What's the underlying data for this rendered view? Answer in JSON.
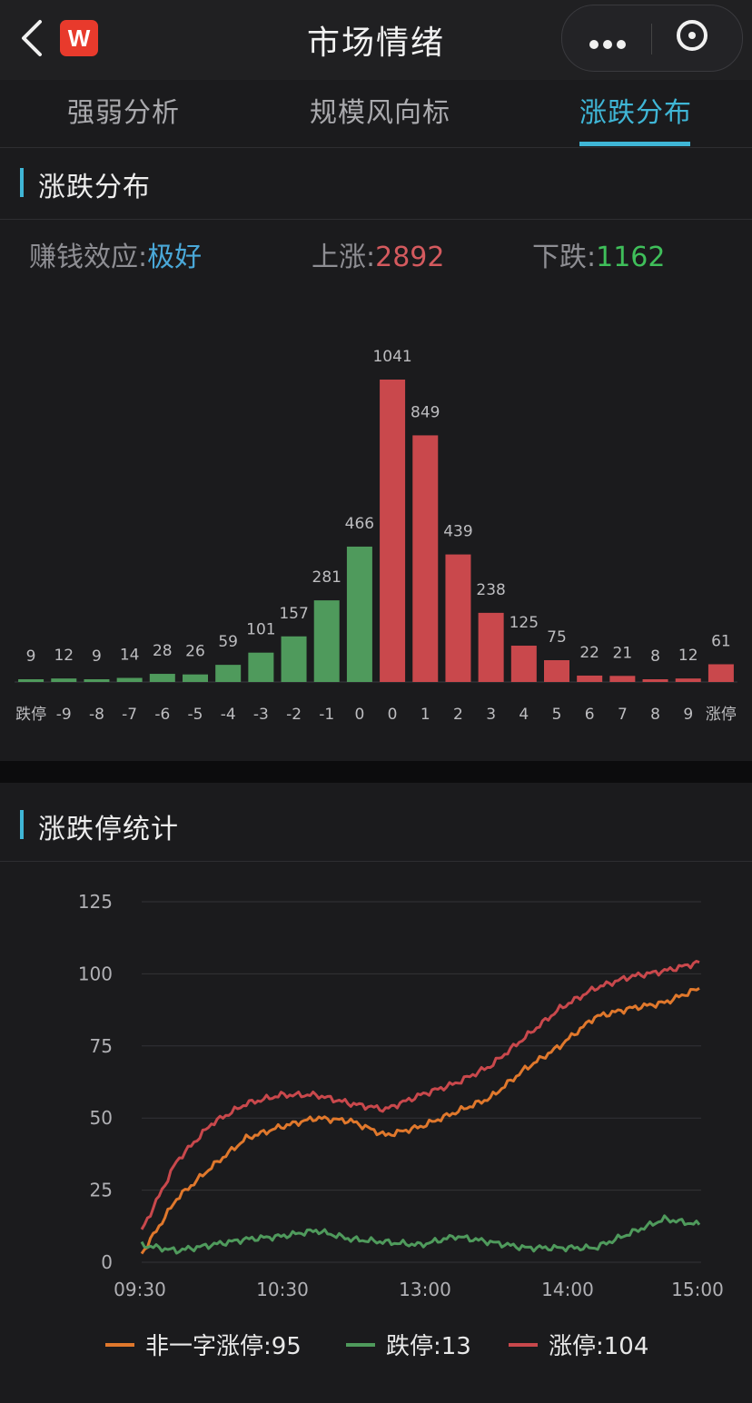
{
  "header": {
    "title": "市场情绪",
    "logo_text": "W",
    "brand_color": "#e83a2c"
  },
  "tabs": [
    {
      "label": "强弱分析",
      "active": false
    },
    {
      "label": "规模风向标",
      "active": false
    },
    {
      "label": "涨跌分布",
      "active": true
    }
  ],
  "distribution_section": {
    "title": "涨跌分布",
    "summary": {
      "effect_label": "赚钱效应:",
      "effect_value": "极好",
      "up_label": "上涨:",
      "up_value": "2892",
      "down_label": "下跌:",
      "down_value": "1162"
    }
  },
  "limit_section": {
    "title": "涨跌停统计"
  },
  "colors": {
    "accent": "#3fb6d6",
    "up": "#c9484c",
    "down": "#4f9a5c",
    "orange": "#e0782c"
  },
  "chart_data": [
    {
      "type": "bar",
      "categories": [
        "跌停",
        "-9",
        "-8",
        "-7",
        "-6",
        "-5",
        "-4",
        "-3",
        "-2",
        "-1",
        "0",
        "0",
        "1",
        "2",
        "3",
        "4",
        "5",
        "6",
        "7",
        "8",
        "9",
        "涨停"
      ],
      "values": [
        9,
        12,
        9,
        14,
        28,
        26,
        59,
        101,
        157,
        281,
        466,
        1041,
        849,
        439,
        238,
        125,
        75,
        22,
        21,
        8,
        12,
        61
      ],
      "colors": [
        "down",
        "down",
        "down",
        "down",
        "down",
        "down",
        "down",
        "down",
        "down",
        "down",
        "down",
        "up",
        "up",
        "up",
        "up",
        "up",
        "up",
        "up",
        "up",
        "up",
        "up",
        "up"
      ],
      "ylim": [
        0,
        1041
      ]
    },
    {
      "type": "line",
      "x_ticks": [
        "09:30",
        "10:30",
        "13:00",
        "14:00",
        "15:00"
      ],
      "y_ticks": [
        "0",
        "25",
        "50",
        "75",
        "100",
        "125"
      ],
      "ylim": [
        0,
        125
      ],
      "grid": true,
      "legend_position": "bottom",
      "x": [
        "09:30",
        "09:45",
        "10:00",
        "10:15",
        "10:30",
        "10:45",
        "11:00",
        "11:15",
        "11:30",
        "13:15",
        "13:30",
        "13:45",
        "14:00",
        "14:15",
        "14:30",
        "14:45",
        "15:00"
      ],
      "series": [
        {
          "name": "非一字涨停:95",
          "color": "orange",
          "values": [
            3,
            22,
            33,
            43,
            47,
            50,
            49,
            44,
            47,
            52,
            57,
            67,
            75,
            85,
            88,
            90,
            95
          ]
        },
        {
          "name": "跌停:13",
          "color": "down",
          "values": [
            6,
            4,
            6,
            8,
            9,
            11,
            8,
            7,
            6,
            9,
            7,
            5,
            5,
            5,
            10,
            15,
            13
          ]
        },
        {
          "name": "涨停:104",
          "color": "up",
          "values": [
            11,
            35,
            48,
            55,
            58,
            58,
            55,
            53,
            58,
            62,
            68,
            78,
            88,
            95,
            99,
            101,
            104
          ]
        }
      ]
    }
  ]
}
